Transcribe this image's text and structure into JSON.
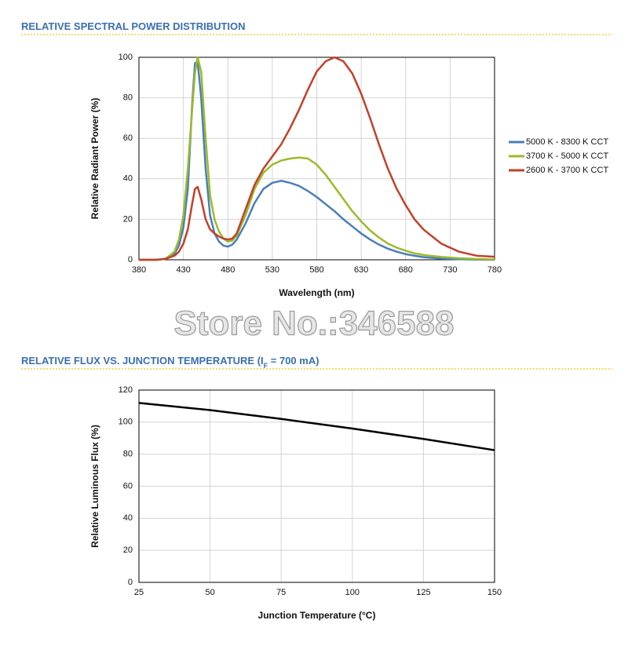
{
  "watermark": "Store No.:346588",
  "chart_data": [
    {
      "type": "line",
      "title": "RELATIVE SPECTRAL POWER DISTRIBUTION",
      "x_label": "Wavelength (nm)",
      "y_label": "Relative Radiant Power (%)",
      "xlim": [
        380,
        780
      ],
      "xticks": [
        380,
        430,
        480,
        530,
        580,
        630,
        680,
        730,
        780
      ],
      "ylim": [
        0,
        100
      ],
      "yticks": [
        0,
        20,
        40,
        60,
        80,
        100
      ],
      "grid": true,
      "legend": "right",
      "x": [
        380,
        390,
        400,
        410,
        420,
        425,
        430,
        435,
        440,
        443,
        446,
        450,
        455,
        460,
        465,
        470,
        475,
        480,
        485,
        490,
        500,
        510,
        520,
        530,
        540,
        550,
        560,
        570,
        580,
        590,
        600,
        610,
        620,
        630,
        640,
        650,
        660,
        670,
        680,
        690,
        700,
        720,
        740,
        760,
        780
      ],
      "series": [
        {
          "name": "5000 K - 8300 K CCT",
          "color": "#4a7ebb",
          "values": [
            0,
            0,
            0,
            0.5,
            3,
            7,
            16,
            35,
            78,
            97,
            98,
            80,
            45,
            22,
            13,
            9,
            7,
            6.5,
            7.5,
            10,
            18,
            28,
            35,
            38,
            39,
            38,
            36.5,
            34,
            31,
            27.5,
            24,
            20,
            16.5,
            13,
            10,
            7.5,
            5.5,
            4,
            2.8,
            2,
            1.3,
            0.6,
            0.3,
            0.1,
            0
          ]
        },
        {
          "name": "3700 K - 5000 K CCT",
          "color": "#9bbb2a",
          "values": [
            0,
            0,
            0,
            0.5,
            4,
            10,
            22,
            45,
            75,
            92,
            100,
            93,
            60,
            32,
            20,
            14,
            10.5,
            9,
            9.5,
            12,
            22,
            35,
            43,
            47,
            49,
            50,
            50.5,
            50,
            47,
            42,
            36,
            30,
            24,
            19,
            14.5,
            11,
            8,
            6,
            4.5,
            3.2,
            2.4,
            1.4,
            0.8,
            0.4,
            0.2
          ]
        },
        {
          "name": "2600 K - 3700 K CCT",
          "color": "#c0412a",
          "values": [
            0,
            0,
            0,
            0.5,
            2,
            4,
            8,
            15,
            28,
            35,
            36,
            30,
            20,
            15,
            13,
            11.5,
            10.5,
            10,
            10.5,
            13,
            25,
            37,
            45,
            51,
            57,
            65,
            74,
            84,
            93,
            98,
            100,
            98,
            92,
            82,
            70,
            57,
            45,
            35,
            27,
            20,
            15,
            8,
            4,
            2,
            1.5
          ]
        }
      ]
    },
    {
      "type": "line",
      "title": [
        "RELATIVE FLUX VS. JUNCTION TEMPERATURE (I",
        "F",
        " = 700 mA)"
      ],
      "x_label": "Junction Temperature (°C)",
      "y_label": "Relative Luminous Flux (%)",
      "xlim": [
        25,
        150
      ],
      "xticks": [
        25,
        50,
        75,
        100,
        125,
        150
      ],
      "ylim": [
        0,
        120
      ],
      "yticks": [
        0,
        20,
        40,
        60,
        80,
        100,
        120
      ],
      "grid": true,
      "x": [
        25,
        50,
        75,
        100,
        125,
        150
      ],
      "series": [
        {
          "color": "#000000",
          "values": [
            112,
            107.5,
            102,
            96,
            89.5,
            82.5
          ]
        }
      ]
    }
  ]
}
